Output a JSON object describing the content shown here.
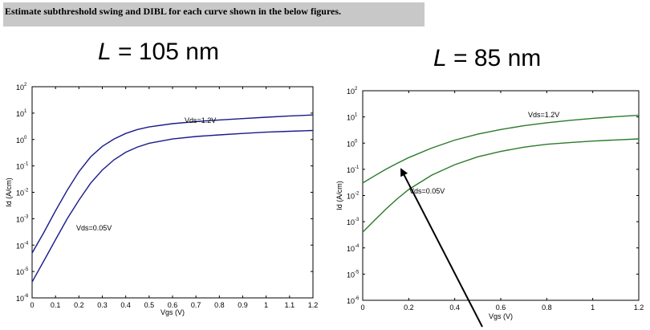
{
  "question": "Estimate subthreshold swing and DIBL for each curve shown in the below figures.",
  "chart_data": [
    {
      "type": "line",
      "title_var": "L",
      "title_rest": " = 105 nm",
      "xlabel": "Vgs (V)",
      "ylabel": "Id (A/cm)",
      "xlim": [
        0,
        1.2
      ],
      "ylim_log10": [
        -6,
        2
      ],
      "y_scale": "log",
      "xticks": [
        "0",
        "0.1",
        "0.2",
        "0.3",
        "0.4",
        "0.5",
        "0.6",
        "0.7",
        "0.8",
        "0.9",
        "1",
        "1.1",
        "1.2"
      ],
      "xtick_values": [
        0,
        0.1,
        0.2,
        0.3,
        0.4,
        0.5,
        0.6,
        0.7,
        0.8,
        0.9,
        1.0,
        1.1,
        1.2
      ],
      "yticks_exp": [
        "-6",
        "-5",
        "-4",
        "-3",
        "-2",
        "-1",
        "0",
        "1",
        "2"
      ],
      "grid": false,
      "line_color": "#1a1a8c",
      "series": [
        {
          "name": "Vds=1.2V",
          "x": [
            0,
            0.05,
            0.1,
            0.15,
            0.2,
            0.25,
            0.3,
            0.35,
            0.4,
            0.45,
            0.5,
            0.6,
            0.7,
            0.8,
            0.9,
            1.0,
            1.1,
            1.2
          ],
          "y": [
            5e-05,
            0.0003,
            0.002,
            0.012,
            0.06,
            0.22,
            0.55,
            1.05,
            1.7,
            2.4,
            3.0,
            4.0,
            4.8,
            5.5,
            6.2,
            7.0,
            7.8,
            8.5
          ]
        },
        {
          "name": "Vds=0.05V",
          "x": [
            0,
            0.05,
            0.1,
            0.15,
            0.2,
            0.25,
            0.3,
            0.35,
            0.4,
            0.45,
            0.5,
            0.6,
            0.7,
            0.8,
            0.9,
            1.0,
            1.1,
            1.2
          ],
          "y": [
            4e-06,
            2.5e-05,
            0.00016,
            0.001,
            0.005,
            0.022,
            0.07,
            0.17,
            0.33,
            0.52,
            0.72,
            1.05,
            1.3,
            1.5,
            1.7,
            1.9,
            2.05,
            2.2
          ]
        }
      ],
      "labels": [
        "Vds=1.2V",
        "Vds=0.05V"
      ]
    },
    {
      "type": "line",
      "title_var": "L",
      "title_rest": " = 85 nm",
      "xlabel": "Vgs (V)",
      "ylabel": "Id (A/cm)",
      "xlim": [
        0,
        1.2
      ],
      "ylim_log10": [
        -6,
        2
      ],
      "y_scale": "log",
      "xticks": [
        "0",
        "0.2",
        "0.4",
        "0.6",
        "0.8",
        "1",
        "1.2"
      ],
      "xtick_values": [
        0,
        0.2,
        0.4,
        0.6,
        0.8,
        1.0,
        1.2
      ],
      "yticks_exp": [
        "-6",
        "-5",
        "-4",
        "-3",
        "-2",
        "-1",
        "0",
        "1",
        "2"
      ],
      "grid": false,
      "line_color": "#2a7a2a",
      "series": [
        {
          "name": "Vds=1.2V",
          "x": [
            0,
            0.05,
            0.1,
            0.15,
            0.2,
            0.3,
            0.4,
            0.5,
            0.6,
            0.7,
            0.8,
            0.9,
            1.0,
            1.1,
            1.2
          ],
          "y": [
            0.03,
            0.055,
            0.1,
            0.17,
            0.28,
            0.65,
            1.3,
            2.2,
            3.3,
            4.6,
            6.0,
            7.4,
            8.8,
            10.2,
            11.5
          ]
        },
        {
          "name": "Vds=0.05V",
          "x": [
            0,
            0.05,
            0.1,
            0.15,
            0.2,
            0.3,
            0.4,
            0.5,
            0.6,
            0.7,
            0.8,
            0.9,
            1.0,
            1.1,
            1.2
          ],
          "y": [
            0.0004,
            0.0011,
            0.003,
            0.0075,
            0.017,
            0.06,
            0.15,
            0.3,
            0.48,
            0.7,
            0.9,
            1.05,
            1.2,
            1.32,
            1.45
          ]
        }
      ],
      "labels": [
        "Vds=1.2V",
        "Vds=0.05V"
      ]
    }
  ]
}
